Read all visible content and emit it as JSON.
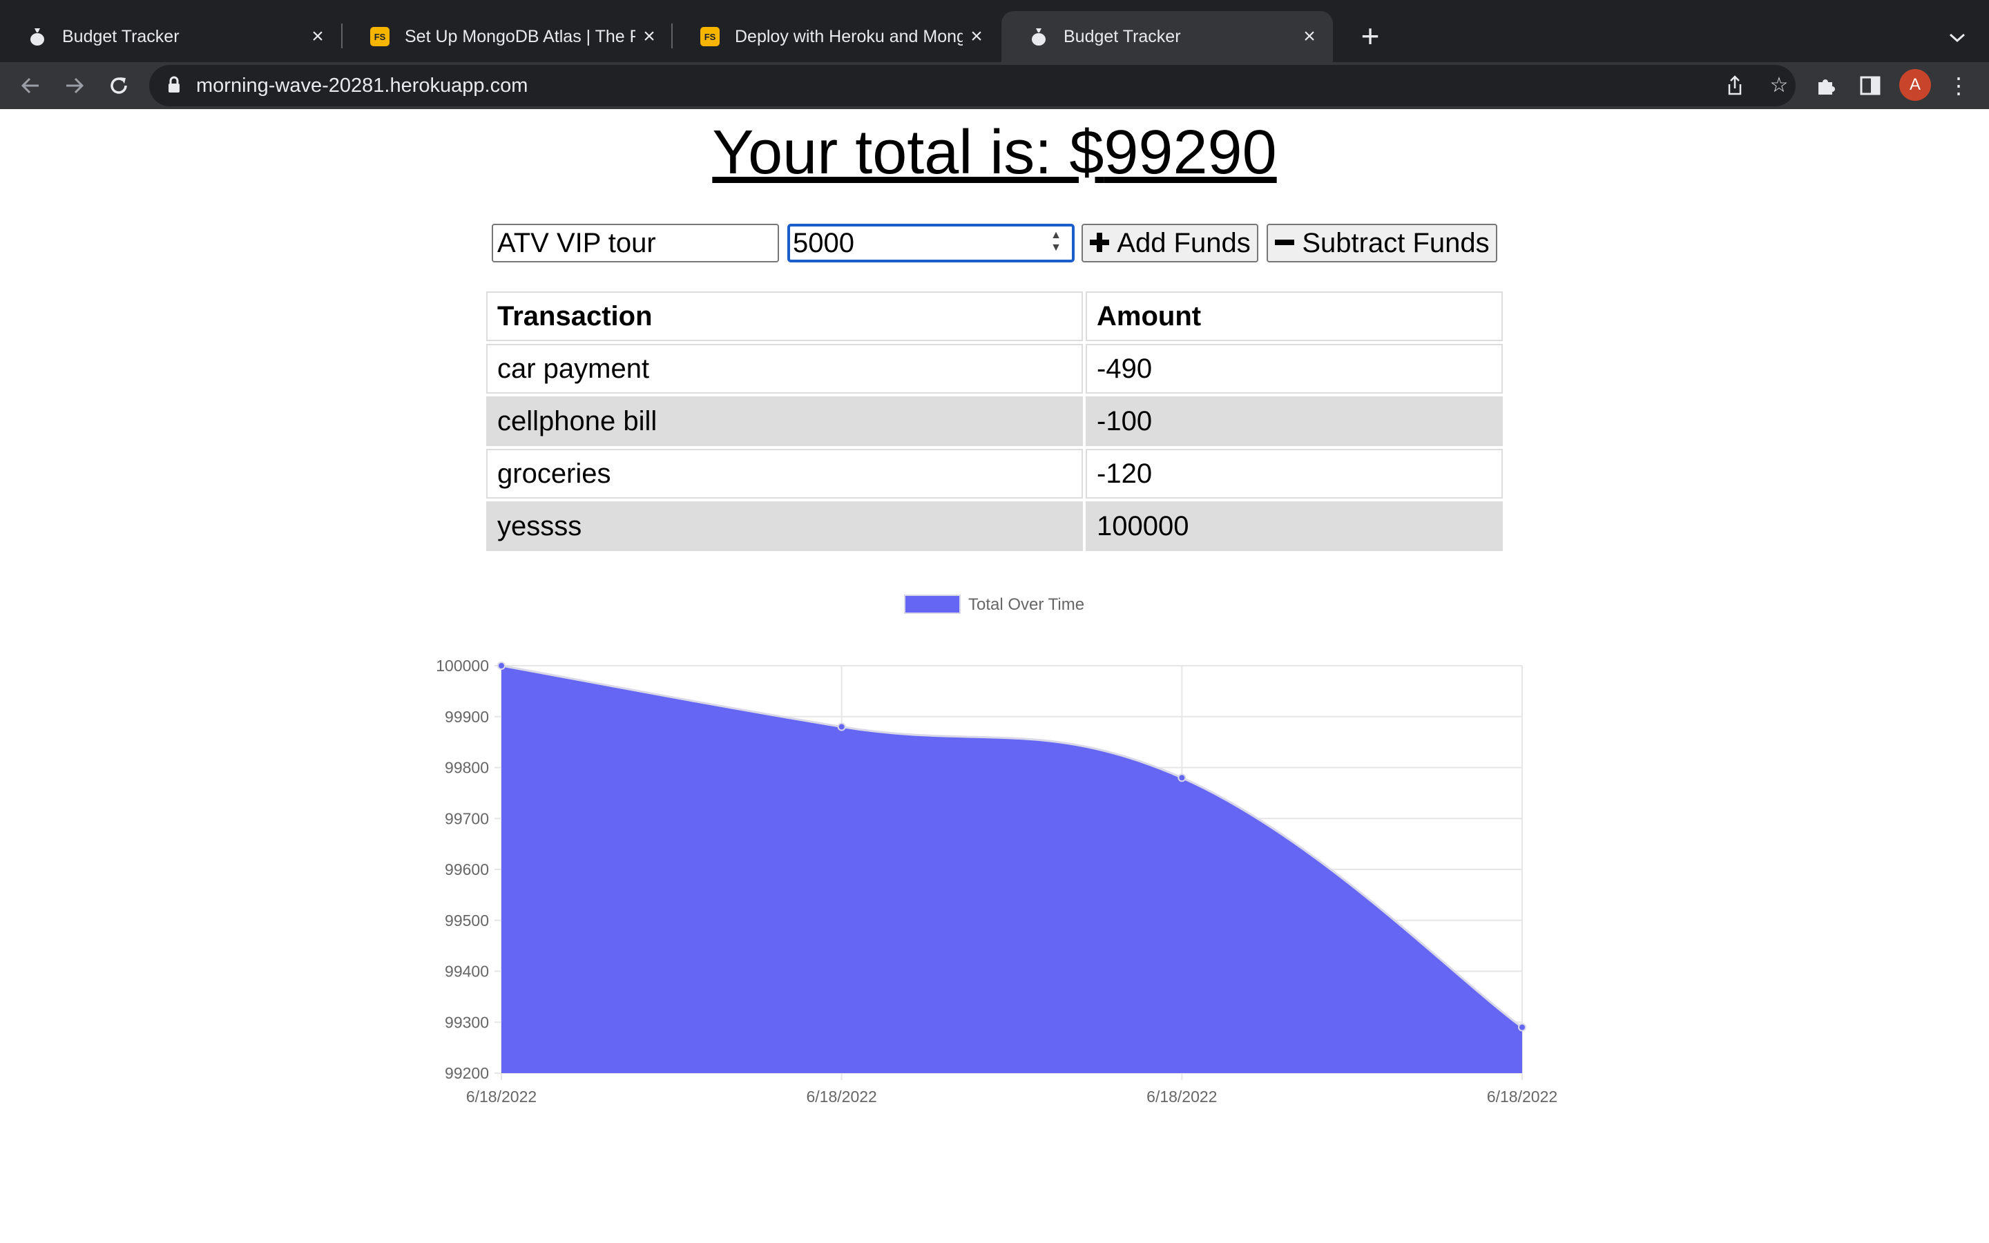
{
  "browser": {
    "tabs": [
      {
        "title": "Budget Tracker",
        "favicon": "money-bag-icon"
      },
      {
        "title": "Set Up MongoDB Atlas | The Fu",
        "favicon": "fs-icon"
      },
      {
        "title": "Deploy with Heroku and Mongo",
        "favicon": "fs-icon"
      },
      {
        "title": "Budget Tracker",
        "favicon": "money-bag-icon"
      }
    ],
    "url": "morning-wave-20281.herokuapp.com",
    "avatar_letter": "A",
    "fs_badge": "FS"
  },
  "page": {
    "total_label": "Your total is: $",
    "total_value": "99290",
    "form": {
      "name_value": "ATV VIP tour",
      "amount_value": "5000",
      "add_label": "Add Funds",
      "subtract_label": "Subtract Funds"
    },
    "table": {
      "headers": [
        "Transaction",
        "Amount"
      ],
      "rows": [
        {
          "name": "car payment",
          "value": "-490"
        },
        {
          "name": "cellphone bill",
          "value": "-100"
        },
        {
          "name": "groceries",
          "value": "-120"
        },
        {
          "name": "yessss",
          "value": "100000"
        }
      ]
    }
  },
  "chart_data": {
    "type": "area",
    "legend": "Total Over Time",
    "legend_position": "top",
    "color": "#6666f4",
    "x": [
      "6/18/2022",
      "6/18/2022",
      "6/18/2022",
      "6/18/2022"
    ],
    "values": [
      100000,
      99880,
      99780,
      99290
    ],
    "ylim": [
      99200,
      100000
    ],
    "yticks": [
      "100000",
      "99900",
      "99800",
      "99700",
      "99600",
      "99500",
      "99400",
      "99300",
      "99200"
    ],
    "grid": true
  }
}
